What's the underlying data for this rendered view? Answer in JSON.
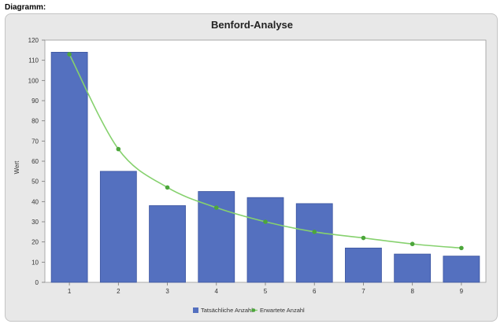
{
  "section_label": "Diagramm:",
  "colors": {
    "bar": "#5470bf",
    "bar_stroke": "#3c559f",
    "line": "#86d16e",
    "marker": "#4ca63b",
    "panel": "#e8e8e8",
    "plot_bg": "#ffffff"
  },
  "chart_data": {
    "type": "bar",
    "title": "Benford-Analyse",
    "xlabel": "",
    "ylabel": "Wert",
    "categories": [
      "1",
      "2",
      "3",
      "4",
      "5",
      "6",
      "7",
      "8",
      "9"
    ],
    "series": [
      {
        "name": "Tatsächliche Anzahl",
        "type": "bar",
        "values": [
          114,
          55,
          38,
          45,
          42,
          39,
          17,
          14,
          13
        ]
      },
      {
        "name": "Erwartete Anzahl",
        "type": "line",
        "values": [
          113,
          66,
          47,
          37,
          30,
          25,
          22,
          19,
          17
        ]
      }
    ],
    "ylim": [
      0,
      120
    ],
    "yticks": [
      0,
      10,
      20,
      30,
      40,
      50,
      60,
      70,
      80,
      90,
      100,
      110,
      120
    ],
    "grid": false,
    "legend_position": "bottom-center"
  }
}
